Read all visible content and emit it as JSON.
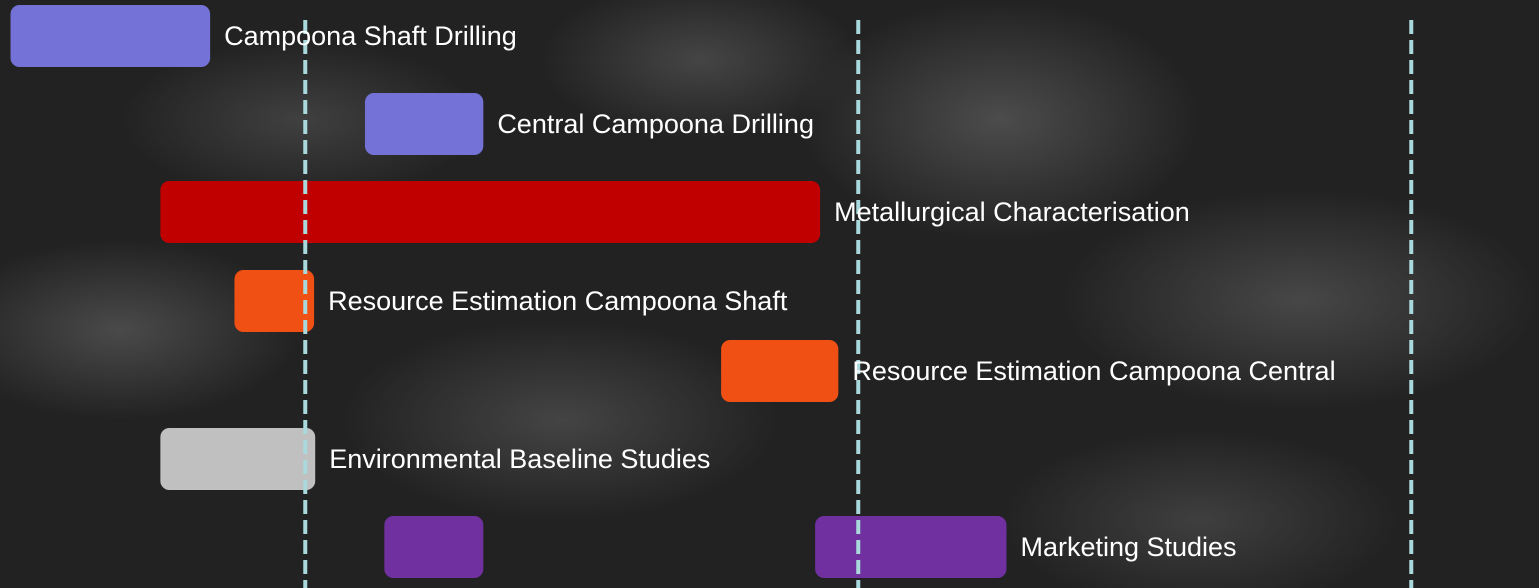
{
  "chart_data": {
    "type": "gantt",
    "xlim": [
      0.448,
      3.231
    ],
    "xticks": [
      1,
      2,
      3
    ],
    "tick_labels": false,
    "grid": true,
    "grid_color": "#a9d9dc",
    "tasks": [
      {
        "name": "Campoona Shaft Drilling",
        "color": "#7472d6",
        "segments": [
          [
            0.467,
            0.828
          ]
        ]
      },
      {
        "name": "Central Campoona Drilling",
        "color": "#7472d6",
        "segments": [
          [
            1.108,
            1.322
          ]
        ]
      },
      {
        "name": "Metallurgical Characterisation",
        "color": "#c00000",
        "segments": [
          [
            0.738,
            1.931
          ]
        ]
      },
      {
        "name": "Resource Estimation Campoona Shaft",
        "color": "#f05014",
        "segments": [
          [
            0.872,
            1.016
          ]
        ]
      },
      {
        "name": "Resource Estimation Campoona Central",
        "color": "#f05014",
        "segments": [
          [
            1.752,
            1.964
          ]
        ]
      },
      {
        "name": "Environmental Baseline Studies",
        "color": "#c0c0c0",
        "segments": [
          [
            0.738,
            1.018
          ]
        ]
      },
      {
        "name": "Marketing Studies",
        "color": "#7030a0",
        "segments": [
          [
            1.143,
            1.322
          ],
          [
            1.922,
            2.268
          ]
        ]
      }
    ]
  }
}
